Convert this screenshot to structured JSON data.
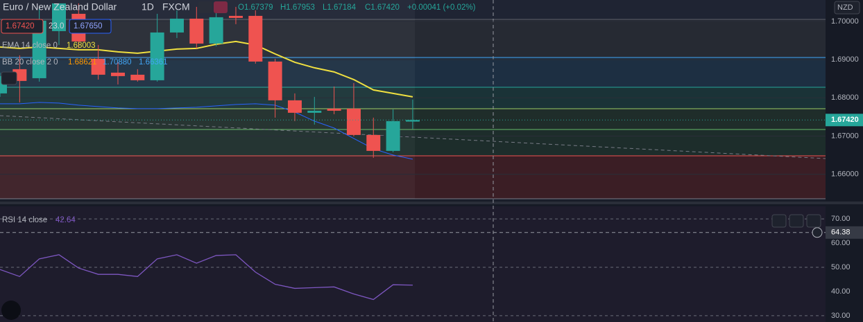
{
  "chart_data": [
    {
      "type": "candlestick",
      "title": "Euro / New Zealand Dollar",
      "interval": "1D",
      "source": "FXCM",
      "ohlc_legend": [
        "O1.67379",
        "H1.67953",
        "L1.67184",
        "C1.67420",
        "+0.00041 (+0.02%)"
      ],
      "quote_boxes": [
        "1.67420",
        "23.0",
        "1.67650"
      ],
      "indicators": [
        {
          "label": "EMA 14 close 0",
          "readings": [
            "1.68003"
          ]
        },
        {
          "label": "BB 20 close 2 0",
          "readings": [
            "1.68621",
            "1.70880",
            "1.66361"
          ]
        }
      ],
      "currency": "NZD",
      "last_price": {
        "value": 1.6742,
        "label": "1.67420"
      },
      "up_color": "#26a69a",
      "down_color": "#ef5350",
      "open": [
        1.68116,
        1.6875,
        1.68514,
        1.69746,
        1.70199,
        1.69022,
        1.68659,
        1.68605,
        1.6846,
        1.6971,
        1.70072,
        1.6942,
        1.70145,
        1.70145,
        1.68949,
        1.67935,
        1.67609,
        1.67717,
        1.67717,
        1.67029,
        1.66612,
        1.67379
      ],
      "high": [
        1.68659,
        1.69112,
        1.7038,
        1.70471,
        1.70471,
        1.69384,
        1.68931,
        1.6875,
        1.70199,
        1.7029,
        1.7038,
        1.7038,
        1.7038,
        1.7029,
        1.69022,
        1.68116,
        1.68025,
        1.68297,
        1.68388,
        1.67482,
        1.67699,
        1.67953
      ],
      "low": [
        1.68025,
        1.6788,
        1.68424,
        1.69384,
        1.69293,
        1.68478,
        1.68351,
        1.68424,
        1.68424,
        1.69565,
        1.69293,
        1.69348,
        1.69928,
        1.68895,
        1.67482,
        1.67391,
        1.67301,
        1.67572,
        1.66993,
        1.66431,
        1.66576,
        1.67184
      ],
      "close": [
        1.68569,
        1.68442,
        1.70018,
        1.70471,
        1.69475,
        1.68605,
        1.68569,
        1.6846,
        1.6971,
        1.70072,
        1.6942,
        1.70109,
        1.70091,
        1.68949,
        1.67935,
        1.67609,
        1.67663,
        1.67663,
        1.67029,
        1.66612,
        1.67391,
        1.6742
      ],
      "series": [
        {
          "name": "EMA 14",
          "color": "#f0e040",
          "values": [
            1.6933,
            1.69293,
            1.6933,
            1.69293,
            1.69257,
            1.69257,
            1.69203,
            1.69167,
            1.69221,
            1.69275,
            1.69293,
            1.69402,
            1.69475,
            1.69384,
            1.69149,
            1.68931,
            1.68786,
            1.68678,
            1.68478,
            1.68207,
            1.68116,
            1.68025
          ]
        },
        {
          "name": "BB lower",
          "color": "#2962ff",
          "values": [
            1.67844,
            1.67844,
            1.6788,
            1.67862,
            1.67808,
            1.67772,
            1.67736,
            1.67717,
            1.67717,
            1.67736,
            1.67754,
            1.6779,
            1.67826,
            1.67844,
            1.67808,
            1.67627,
            1.67391,
            1.6721,
            1.66938,
            1.66667,
            1.66504,
            1.66395
          ]
        }
      ],
      "ylim": [
        1.6536,
        1.7056
      ],
      "yticks": [
        {
          "value": 1.7,
          "label": "1.70000"
        },
        {
          "value": 1.69,
          "label": "1.69000"
        },
        {
          "value": 1.68,
          "label": "1.68000"
        },
        {
          "value": 1.67,
          "label": "1.67000"
        },
        {
          "value": 1.66,
          "label": "1.66000"
        }
      ]
    },
    {
      "type": "line",
      "title": "RSI 14 close",
      "readings": [
        "42.64"
      ],
      "crosshair": {
        "value": 64.38,
        "label": "64.38"
      },
      "series": [
        {
          "name": "RSI",
          "color": "#7e57c2",
          "values": [
            49.1,
            46.2,
            53.5,
            55.2,
            49.7,
            47.1,
            47.1,
            46.2,
            53.5,
            55.2,
            51.7,
            54.9,
            55.2,
            48.0,
            43.0,
            41.3,
            41.6,
            41.9,
            39.0,
            36.7,
            42.8,
            42.64
          ]
        }
      ],
      "ylim": [
        27.4,
        75.2
      ],
      "yticks": [
        {
          "value": 70,
          "label": "70.00"
        },
        {
          "value": 60,
          "label": "60.00"
        },
        {
          "value": 50,
          "label": "50.00"
        },
        {
          "value": 40,
          "label": "40.00"
        },
        {
          "value": 30,
          "label": "30.00"
        }
      ]
    }
  ]
}
